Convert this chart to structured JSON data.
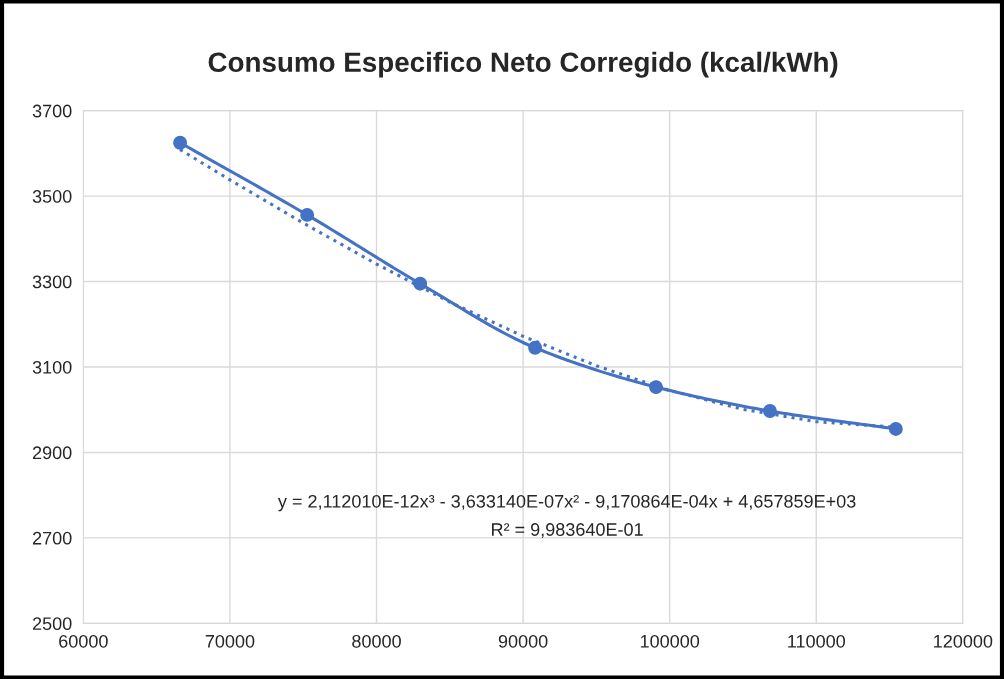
{
  "chart_data": {
    "type": "line",
    "title": "Consumo Especifico Neto Corregido (kcal/kWh)",
    "xlim": [
      60000,
      120000
    ],
    "xticks": [
      60000,
      70000,
      80000,
      90000,
      100000,
      110000,
      120000
    ],
    "ylim": [
      2500,
      3700
    ],
    "yticks": [
      2500,
      2700,
      2900,
      3100,
      3300,
      3500,
      3700
    ],
    "grid": true,
    "legend": false,
    "series": [
      {
        "color": "#4472c4",
        "marker": "circle",
        "line_style": "solid",
        "x": [
          66600,
          75270,
          82980,
          90820,
          99070,
          106840,
          115430
        ],
        "values": [
          3625,
          3456,
          3295,
          3145,
          3053,
          2997,
          2955
        ]
      },
      {
        "color": "#4472c4",
        "marker": "none",
        "line_style": "dotted",
        "x": [
          66600,
          70000,
          75000,
          80000,
          85000,
          90000,
          95000,
          100000,
          105000,
          110000,
          115430
        ],
        "values": [
          3609,
          3538,
          3437,
          3341,
          3252,
          3172,
          3103,
          3045,
          3001,
          2972,
          2959
        ]
      }
    ],
    "annotations": [
      "y = 2,112010E-12x³ - 3,633140E-07x² - 9,170864E-04x + 4,657859E+03",
      "R² = 9,983640E-01"
    ]
  }
}
